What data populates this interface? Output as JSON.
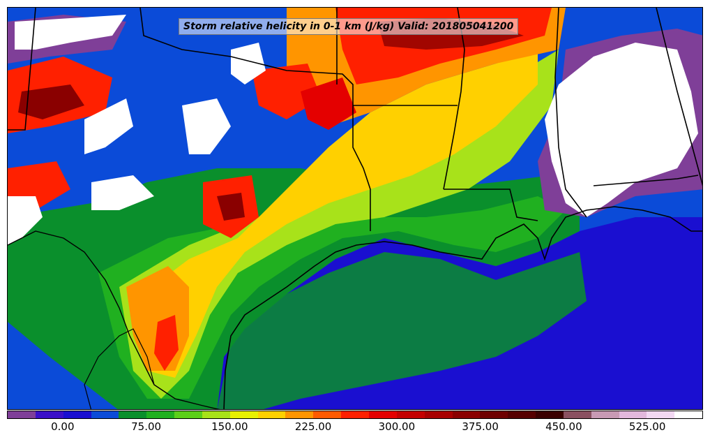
{
  "title": "Storm relative helicity in 0-1 km (J/kg) Valid: 201805041200",
  "colorbar": {
    "tick_labels": [
      "0.00",
      "75.00",
      "150.00",
      "225.00",
      "300.00",
      "375.00",
      "450.00",
      "525.00"
    ],
    "tick_values": [
      0,
      75,
      150,
      225,
      300,
      375,
      450,
      525
    ],
    "range": [
      -50,
      575
    ],
    "step": 25,
    "colors": [
      "#7f3f98",
      "#3a10c8",
      "#1a0fd0",
      "#0b4bd8",
      "#0a8f2c",
      "#20b020",
      "#5ccf1a",
      "#a8e21a",
      "#e8f000",
      "#ffd000",
      "#ff9500",
      "#ff5a00",
      "#ff2000",
      "#e40000",
      "#c40000",
      "#a80000",
      "#8a0000",
      "#6e0000",
      "#560000",
      "#3a0000",
      "#8a5060",
      "#c89ab4",
      "#e2b8dc",
      "#f2d8f2",
      "#ffffff"
    ]
  },
  "map": {
    "background_color": "#1a0fd0",
    "coastline_color": "#000000",
    "fill_colors": {
      "ocean_low": "#1a0fd0",
      "coastal_green": "#0a8f2c",
      "light_green": "#20b020",
      "lime": "#a8e21a",
      "yellow": "#ffd000",
      "orange": "#ff9500",
      "red": "#ff2000",
      "dark_red": "#8a0000",
      "purple": "#7f3f98",
      "blank": "#ffffff"
    }
  }
}
